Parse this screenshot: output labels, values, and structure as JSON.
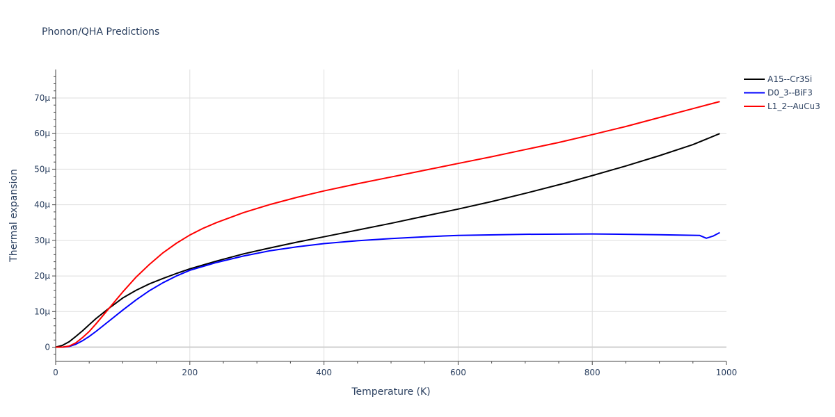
{
  "chart_data": {
    "type": "line",
    "title": "Phonon/QHA Predictions",
    "xlabel": "Temperature (K)",
    "ylabel": "Thermal expansion",
    "xlim": [
      0,
      1000
    ],
    "ylim": [
      -4,
      78
    ],
    "x_ticks": [
      0,
      200,
      400,
      600,
      800,
      1000
    ],
    "y_ticks": [
      0,
      10,
      20,
      30,
      40,
      50,
      60,
      70
    ],
    "x_tick_labels": [
      "0",
      "200",
      "400",
      "600",
      "800",
      "1000"
    ],
    "y_tick_labels": [
      "0",
      "10μ",
      "20μ",
      "30μ",
      "40μ",
      "50μ",
      "60μ",
      "70μ"
    ],
    "grid": true,
    "legend_position": "top-right",
    "series": [
      {
        "name": "A15--Cr3Si",
        "color": "#000000",
        "x": [
          0,
          10,
          20,
          30,
          40,
          50,
          60,
          80,
          100,
          120,
          140,
          160,
          180,
          200,
          240,
          280,
          320,
          360,
          400,
          450,
          500,
          550,
          600,
          650,
          700,
          760,
          800,
          850,
          900,
          950,
          990
        ],
        "y": [
          0,
          0.5,
          1.5,
          3.0,
          4.6,
          6.3,
          8.0,
          11.0,
          13.8,
          16.0,
          17.8,
          19.3,
          20.7,
          22.0,
          24.2,
          26.2,
          27.9,
          29.5,
          31.0,
          32.9,
          34.8,
          36.8,
          38.8,
          40.9,
          43.2,
          46.1,
          48.2,
          50.9,
          53.8,
          56.9,
          60.0
        ]
      },
      {
        "name": "D0_3--BiF3",
        "color": "#0000ff",
        "x": [
          0,
          10,
          20,
          30,
          40,
          50,
          60,
          80,
          100,
          120,
          140,
          160,
          180,
          200,
          240,
          280,
          320,
          360,
          400,
          450,
          500,
          550,
          600,
          700,
          800,
          900,
          960,
          970,
          980,
          990
        ],
        "y": [
          0,
          0,
          0.2,
          0.8,
          1.8,
          3.0,
          4.4,
          7.4,
          10.4,
          13.3,
          15.9,
          18.1,
          20.0,
          21.6,
          23.8,
          25.6,
          27.1,
          28.2,
          29.1,
          29.9,
          30.5,
          31.0,
          31.4,
          31.7,
          31.8,
          31.6,
          31.4,
          30.6,
          31.2,
          32.2
        ]
      },
      {
        "name": "L1_2--AuCu3",
        "color": "#ff0000",
        "x": [
          0,
          10,
          20,
          30,
          40,
          50,
          60,
          80,
          100,
          120,
          140,
          160,
          180,
          200,
          220,
          240,
          280,
          320,
          360,
          400,
          450,
          500,
          550,
          600,
          650,
          700,
          750,
          800,
          850,
          900,
          950,
          990
        ],
        "y": [
          0,
          0,
          0.3,
          1.2,
          2.7,
          4.4,
          6.5,
          11.0,
          15.5,
          19.7,
          23.3,
          26.5,
          29.2,
          31.5,
          33.4,
          35.0,
          37.8,
          40.1,
          42.1,
          43.9,
          45.9,
          47.8,
          49.7,
          51.6,
          53.5,
          55.5,
          57.5,
          59.7,
          62.0,
          64.5,
          67.0,
          69.0
        ]
      }
    ]
  }
}
